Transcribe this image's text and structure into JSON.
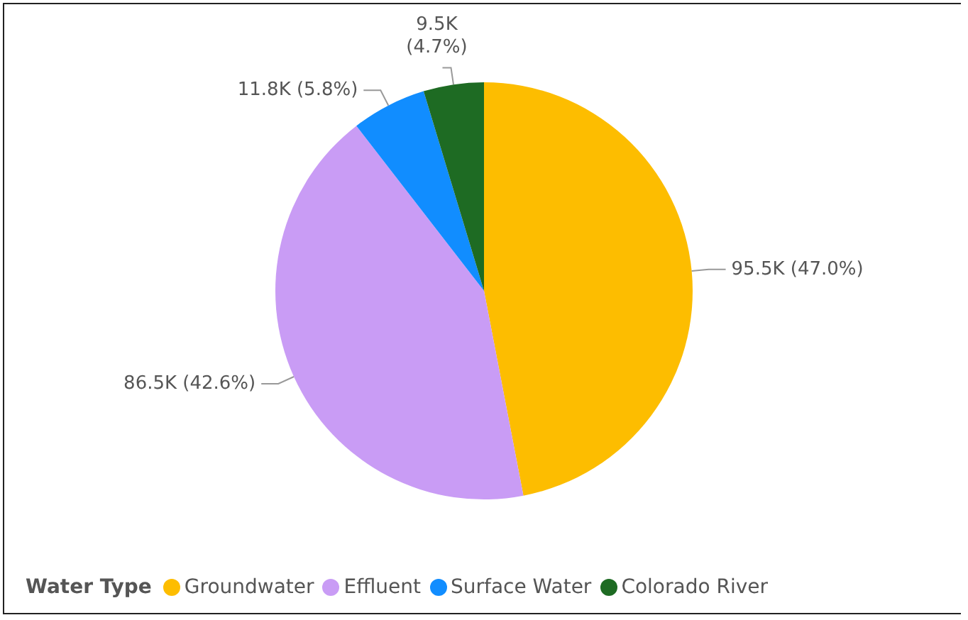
{
  "chart_data": {
    "type": "pie",
    "legend_title": "Water Type",
    "legend": "bottom left",
    "categories": [
      "Groundwater",
      "Effluent",
      "Surface Water",
      "Colorado River"
    ],
    "values": [
      95500,
      86500,
      11800,
      9500
    ],
    "value_labels": [
      "95.5K (47.0%)",
      "86.5K (42.6%)",
      "11.8K (5.8%)",
      "9.5K (4.7%)"
    ],
    "colors": [
      "#fdbd00",
      "#c99cf5",
      "#118dff",
      "#1e6b23"
    ]
  }
}
